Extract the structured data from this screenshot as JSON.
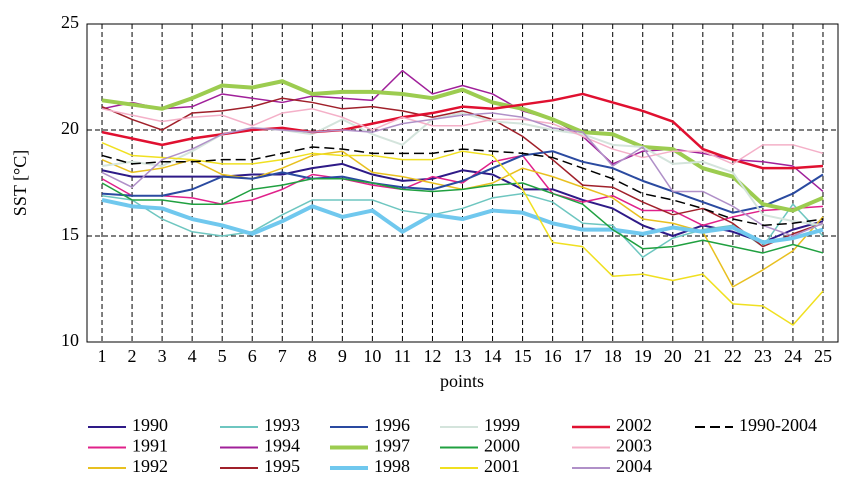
{
  "chart_data": {
    "type": "line",
    "y_label": "SST [°C]",
    "x_label": "points",
    "x": [
      1,
      2,
      3,
      4,
      5,
      6,
      7,
      8,
      9,
      10,
      11,
      12,
      13,
      14,
      15,
      16,
      17,
      18,
      19,
      20,
      21,
      22,
      23,
      24,
      25
    ],
    "xlim": [
      0.5,
      25.5
    ],
    "xticks": [
      1,
      2,
      3,
      4,
      5,
      6,
      7,
      8,
      9,
      10,
      11,
      12,
      13,
      14,
      15,
      16,
      17,
      18,
      19,
      20,
      21,
      22,
      23,
      24,
      25
    ],
    "ylim": [
      10,
      25
    ],
    "yticks": [
      10,
      15,
      20,
      25
    ],
    "grid": true,
    "legend": "bottom",
    "series": [
      {
        "name": "1990",
        "color": "#2e1a87",
        "linewidth": 2,
        "values": [
          18.1,
          17.8,
          17.8,
          17.8,
          17.8,
          17.9,
          17.9,
          18.2,
          18.4,
          17.9,
          17.6,
          17.7,
          18.1,
          17.9,
          17.2,
          17.2,
          16.7,
          16.3,
          15.5,
          15.0,
          15.5,
          15.2,
          14.7,
          15.3,
          15.7
        ]
      },
      {
        "name": "1991",
        "color": "#e0218a",
        "linewidth": 1.5,
        "values": [
          17.7,
          16.9,
          16.9,
          16.8,
          16.5,
          16.7,
          17.2,
          17.9,
          17.7,
          17.4,
          17.2,
          17.8,
          17.5,
          18.5,
          18.8,
          17.0,
          16.6,
          16.9,
          16.2,
          16.2,
          15.5,
          15.9,
          16.2,
          16.3,
          16.4
        ]
      },
      {
        "name": "1992",
        "color": "#e8c020",
        "linewidth": 1.5,
        "values": [
          18.6,
          18.0,
          18.2,
          18.6,
          17.9,
          17.7,
          18.2,
          18.8,
          19.0,
          18.0,
          17.8,
          17.5,
          17.2,
          17.5,
          18.2,
          17.8,
          17.3,
          16.8,
          15.8,
          15.6,
          15.2,
          12.6,
          13.4,
          14.3,
          15.9
        ]
      },
      {
        "name": "1993",
        "color": "#6ec6c0",
        "linewidth": 1.5,
        "values": [
          16.9,
          16.7,
          15.8,
          15.2,
          15.0,
          15.2,
          16.0,
          16.7,
          16.7,
          16.7,
          16.2,
          16.0,
          16.3,
          16.8,
          17.0,
          16.6,
          15.6,
          15.5,
          14.0,
          14.9,
          15.3,
          15.5,
          14.5,
          16.5,
          15.0
        ]
      },
      {
        "name": "1994",
        "color": "#a0209a",
        "linewidth": 1.5,
        "values": [
          21.0,
          21.3,
          21.0,
          21.1,
          21.7,
          21.5,
          21.3,
          21.6,
          21.5,
          21.4,
          22.8,
          21.7,
          22.1,
          21.7,
          20.9,
          20.5,
          19.7,
          18.4,
          19.0,
          19.1,
          18.9,
          18.6,
          18.5,
          18.3,
          17.1
        ]
      },
      {
        "name": "1995",
        "color": "#a0202a",
        "linewidth": 1.5,
        "values": [
          21.1,
          20.5,
          20.0,
          20.8,
          20.9,
          21.1,
          21.5,
          21.3,
          21.0,
          21.1,
          20.9,
          20.6,
          20.9,
          20.5,
          19.7,
          18.6,
          17.4,
          17.3,
          16.6,
          16.0,
          16.3,
          15.6,
          14.5,
          15.1,
          15.6
        ]
      },
      {
        "name": "1996",
        "color": "#2a4aa0",
        "linewidth": 2,
        "values": [
          17.0,
          16.9,
          16.9,
          17.2,
          17.8,
          17.7,
          18.0,
          17.7,
          17.8,
          17.5,
          17.3,
          17.2,
          17.6,
          18.2,
          18.8,
          19.0,
          18.5,
          18.2,
          17.6,
          17.1,
          16.6,
          16.1,
          16.4,
          17.0,
          17.9
        ]
      },
      {
        "name": "1997",
        "color": "#9ccc50",
        "linewidth": 4,
        "values": [
          21.4,
          21.2,
          21.0,
          21.5,
          22.1,
          22.0,
          22.3,
          21.7,
          21.8,
          21.8,
          21.7,
          21.5,
          21.9,
          21.3,
          21.0,
          20.5,
          19.9,
          19.8,
          19.2,
          19.1,
          18.2,
          17.8,
          16.5,
          16.2,
          16.8
        ]
      },
      {
        "name": "1998",
        "color": "#70c8ee",
        "linewidth": 4,
        "values": [
          16.7,
          16.4,
          16.3,
          15.8,
          15.5,
          15.1,
          15.7,
          16.4,
          15.9,
          16.2,
          15.2,
          16.0,
          15.8,
          16.2,
          16.1,
          15.6,
          15.3,
          15.3,
          15.1,
          15.4,
          15.2,
          15.4,
          14.7,
          14.9,
          15.3
        ]
      },
      {
        "name": "1999",
        "color": "#d4e4dc",
        "linewidth": 2,
        "values": [
          18.3,
          18.5,
          18.3,
          19.0,
          19.8,
          20.1,
          20.0,
          19.8,
          20.5,
          19.8,
          19.3,
          20.5,
          20.8,
          20.4,
          20.3,
          20.0,
          19.8,
          19.3,
          19.2,
          18.4,
          18.5,
          18.0,
          16.0,
          15.7,
          15.5
        ]
      },
      {
        "name": "2000",
        "color": "#20a040",
        "linewidth": 1.5,
        "values": [
          17.5,
          16.7,
          16.7,
          16.5,
          16.5,
          17.2,
          17.4,
          17.7,
          17.7,
          17.5,
          17.2,
          17.1,
          17.2,
          17.4,
          17.5,
          17.0,
          16.5,
          15.3,
          14.4,
          14.5,
          14.8,
          14.5,
          14.2,
          14.6,
          14.2
        ]
      },
      {
        "name": "2001",
        "color": "#f0e020",
        "linewidth": 1.5,
        "values": [
          19.4,
          18.8,
          18.7,
          18.6,
          18.4,
          18.4,
          18.6,
          18.9,
          18.8,
          18.8,
          18.6,
          18.6,
          19.0,
          18.8,
          17.2,
          14.7,
          14.5,
          13.1,
          13.2,
          12.9,
          13.2,
          11.8,
          11.7,
          10.8,
          12.4
        ]
      },
      {
        "name": "2002",
        "color": "#e01030",
        "linewidth": 2.5,
        "values": [
          19.9,
          19.6,
          19.3,
          19.6,
          19.8,
          20.0,
          20.1,
          19.9,
          20.0,
          20.3,
          20.6,
          20.8,
          21.1,
          21.0,
          21.2,
          21.4,
          21.7,
          21.3,
          20.9,
          20.4,
          19.1,
          18.6,
          18.2,
          18.2,
          18.3
        ]
      },
      {
        "name": "2003",
        "color": "#f4b0c8",
        "linewidth": 1.5,
        "values": [
          21.0,
          20.7,
          20.4,
          20.6,
          20.7,
          20.2,
          20.8,
          21.0,
          20.6,
          20.0,
          20.6,
          20.2,
          20.2,
          20.5,
          20.5,
          20.3,
          19.7,
          19.1,
          18.7,
          19.0,
          19.0,
          18.4,
          19.3,
          19.3,
          18.9
        ]
      },
      {
        "name": "2004",
        "color": "#b090c8",
        "linewidth": 1.5,
        "values": [
          18.0,
          17.3,
          18.6,
          19.1,
          19.8,
          20.1,
          20.0,
          19.9,
          20.0,
          19.9,
          20.3,
          20.5,
          20.7,
          20.8,
          20.6,
          20.1,
          19.9,
          18.3,
          19.2,
          17.1,
          17.1,
          16.4,
          15.5,
          15.0,
          15.6
        ]
      },
      {
        "name": "1990-2004",
        "color": "#000000",
        "linewidth": 1.5,
        "style": "dashed",
        "values": [
          18.8,
          18.4,
          18.5,
          18.5,
          18.6,
          18.6,
          18.9,
          19.2,
          19.1,
          18.9,
          18.9,
          18.9,
          19.1,
          19.0,
          18.9,
          18.7,
          18.2,
          17.7,
          17.0,
          16.7,
          16.3,
          15.8,
          15.5,
          15.6,
          15.8
        ]
      }
    ]
  }
}
